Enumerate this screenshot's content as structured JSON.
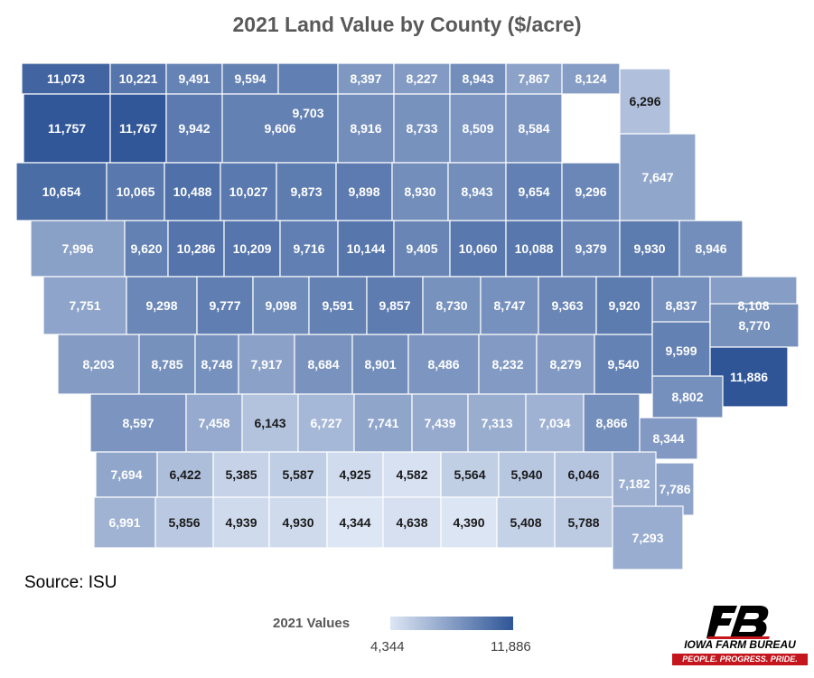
{
  "title": "2021 Land Value by County ($/acre)",
  "source": "Source: ISU",
  "legend": {
    "label": "2021 Values",
    "min_label": "4,344",
    "max_label": "11,886",
    "min_color": "#dde6f4",
    "max_color": "#2f5597"
  },
  "brand": {
    "name": "IOWA FARM BUREAU",
    "tagline": "PEOPLE. PROGRESS. PRIDE.",
    "red": "#c4161c"
  },
  "chart_data": {
    "type": "heatmap",
    "title": "2021 Land Value by County ($/acre)",
    "range": [
      4344,
      11886
    ],
    "rows": [
      [
        11073,
        10221,
        9491,
        9594,
        9703,
        8397,
        8227,
        8943,
        7867,
        8124,
        6296
      ],
      [
        11757,
        11767,
        9942,
        9606,
        8916,
        8733,
        8509,
        8584
      ],
      [
        10654,
        10065,
        10488,
        10027,
        9873,
        9898,
        8930,
        8943,
        9654,
        9296,
        7647
      ],
      [
        7996,
        9620,
        10286,
        10209,
        9716,
        10144,
        9405,
        10060,
        10088,
        9379,
        9930,
        8946
      ],
      [
        7751,
        9298,
        9777,
        9098,
        9591,
        9857,
        8730,
        8747,
        9363,
        9920,
        8837,
        8108
      ],
      [
        8203,
        8785,
        8748,
        7917,
        8684,
        8901,
        8486,
        8232,
        8279,
        9540,
        9599,
        8770,
        11886
      ],
      [
        8597,
        7458,
        6143,
        6727,
        7741,
        7439,
        7313,
        7034,
        8866,
        8802,
        8344
      ],
      [
        7694,
        6422,
        5385,
        5587,
        4925,
        4582,
        5564,
        5940,
        6046,
        7182,
        7786
      ],
      [
        6991,
        5856,
        4939,
        4930,
        4344,
        4638,
        4390,
        5408,
        5788,
        7293
      ]
    ]
  }
}
